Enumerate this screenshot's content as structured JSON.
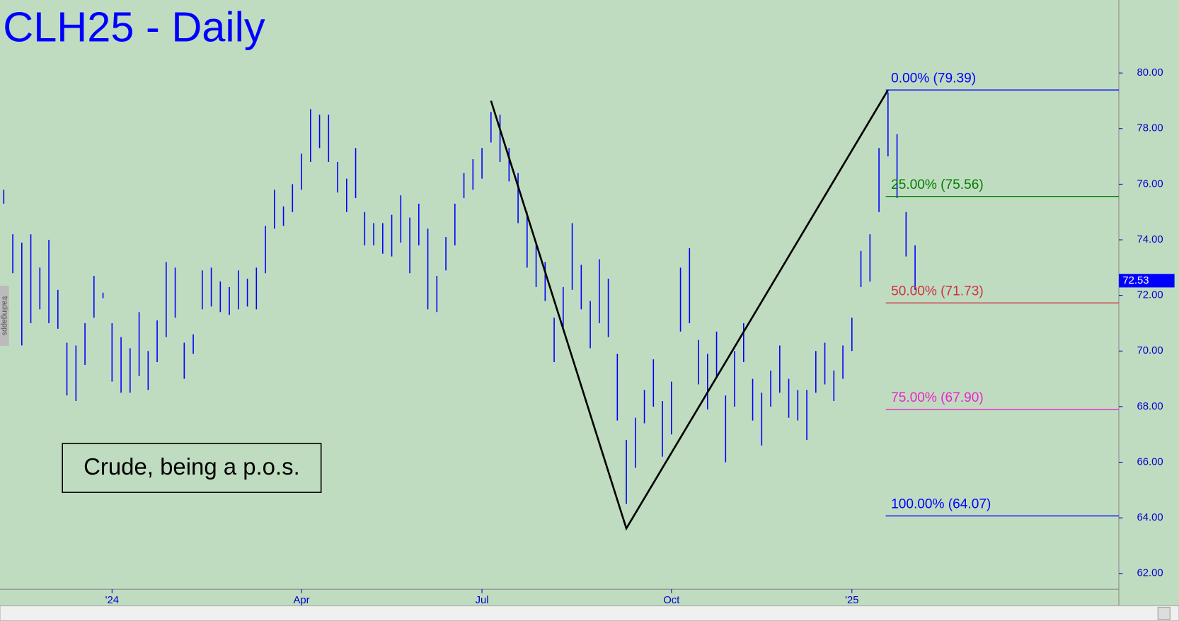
{
  "chart_data": {
    "type": "ohlc",
    "title": "CLH25 - Daily",
    "watermark": "tradingapps",
    "annotation": "Crude, being a p.o.s.",
    "color": "#0000ff",
    "categories": [
      null,
      null,
      null,
      null,
      null,
      null,
      null,
      null,
      null,
      null,
      null,
      null,
      "'24",
      null,
      null,
      null,
      null,
      null,
      null,
      null,
      null,
      null,
      null,
      null,
      null,
      null,
      null,
      null,
      null,
      null,
      null,
      null,
      null,
      "Apr",
      null,
      null,
      null,
      null,
      null,
      null,
      null,
      null,
      null,
      null,
      null,
      null,
      null,
      null,
      null,
      null,
      null,
      null,
      null,
      "Jul",
      null,
      null,
      null,
      null,
      null,
      null,
      null,
      null,
      null,
      null,
      null,
      null,
      null,
      null,
      null,
      null,
      null,
      null,
      null,
      null,
      "Oct",
      null,
      null,
      null,
      null,
      null,
      null,
      null,
      null,
      null,
      null,
      null,
      null,
      null,
      null,
      null,
      null,
      null,
      null,
      null,
      "'25",
      null,
      null,
      null,
      null,
      null,
      null,
      null
    ],
    "high": [
      75.8,
      74.2,
      73.9,
      74.2,
      73.0,
      74.0,
      72.2,
      70.3,
      70.2,
      71.0,
      72.7,
      72.1,
      71.0,
      70.5,
      70.1,
      71.4,
      70.0,
      71.1,
      73.2,
      73.0,
      70.3,
      70.6,
      72.9,
      73.0,
      72.5,
      72.3,
      72.9,
      72.6,
      73.0,
      74.5,
      75.8,
      75.2,
      76.0,
      77.1,
      78.7,
      78.5,
      78.5,
      76.8,
      76.2,
      77.3,
      75.0,
      74.6,
      74.6,
      74.9,
      75.6,
      74.8,
      75.3,
      74.4,
      72.7,
      74.1,
      75.3,
      76.4,
      76.9,
      77.3,
      78.6,
      78.5,
      77.3,
      76.4,
      75.0,
      73.9,
      73.2,
      71.2,
      72.3,
      74.6,
      73.1,
      71.8,
      73.3,
      72.6,
      69.9,
      66.8,
      67.6,
      68.6,
      69.7,
      68.2,
      68.9,
      73.0,
      73.7,
      70.4,
      69.9,
      70.7,
      68.4,
      70.0,
      71.0,
      69.0,
      68.5,
      69.3,
      70.2,
      69.0,
      68.6,
      68.6,
      70.0,
      70.3,
      69.3,
      70.2,
      71.2,
      73.6,
      74.2,
      77.3,
      79.3,
      77.8,
      75.0,
      73.8
    ],
    "low": [
      75.3,
      72.8,
      70.2,
      71.0,
      71.5,
      71.0,
      70.8,
      68.4,
      68.2,
      69.5,
      71.2,
      71.9,
      68.9,
      68.5,
      68.5,
      69.1,
      68.6,
      69.6,
      70.5,
      71.2,
      69.0,
      69.9,
      71.5,
      71.6,
      71.4,
      71.3,
      71.5,
      71.6,
      71.5,
      72.8,
      74.4,
      74.5,
      75.0,
      75.8,
      76.8,
      77.3,
      76.8,
      75.7,
      75.0,
      75.5,
      73.8,
      73.8,
      73.5,
      73.4,
      73.9,
      72.8,
      73.8,
      71.5,
      71.4,
      72.9,
      73.8,
      75.5,
      75.8,
      76.2,
      77.5,
      76.8,
      76.1,
      74.6,
      73.0,
      72.3,
      71.8,
      69.6,
      70.8,
      72.2,
      71.5,
      70.1,
      71.0,
      70.5,
      67.5,
      64.5,
      65.8,
      67.4,
      68.0,
      66.2,
      67.0,
      70.7,
      71.0,
      68.8,
      67.9,
      69.1,
      66.0,
      68.0,
      69.6,
      67.5,
      66.6,
      68.0,
      68.5,
      67.6,
      67.5,
      66.8,
      68.5,
      68.8,
      68.2,
      69.0,
      70.0,
      72.3,
      72.5,
      75.0,
      77.0,
      75.5,
      73.4,
      72.2
    ],
    "trendline": {
      "x": [
        54,
        69,
        98
      ],
      "values": [
        79.0,
        63.62,
        79.39
      ],
      "color": "#000000"
    },
    "fib_levels": [
      {
        "label": "0.00% (79.39)",
        "value": 79.39,
        "color": "#0000ff"
      },
      {
        "label": "25.00% (75.56)",
        "value": 75.56,
        "color": "#008000"
      },
      {
        "label": "50.00% (71.73)",
        "value": 71.73,
        "color": "#cc3344"
      },
      {
        "label": "75.00% (67.90)",
        "value": 67.9,
        "color": "#ee22cc"
      },
      {
        "label": "100.00% (64.07)",
        "value": 64.07,
        "color": "#0000ff"
      }
    ],
    "last_price": 72.53,
    "ylim": [
      61.43,
      82.62
    ],
    "yticks": [
      {
        "value": 62,
        "label": "62.00"
      },
      {
        "value": 64,
        "label": "64.00"
      },
      {
        "value": 66,
        "label": "66.00"
      },
      {
        "value": 68,
        "label": "68.00"
      },
      {
        "value": 70,
        "label": "70.00"
      },
      {
        "value": 72,
        "label": "72.00"
      },
      {
        "value": 74,
        "label": "74.00"
      },
      {
        "value": 76,
        "label": "76.00"
      },
      {
        "value": 78,
        "label": "78.00"
      },
      {
        "value": 80,
        "label": "80.00"
      }
    ]
  }
}
